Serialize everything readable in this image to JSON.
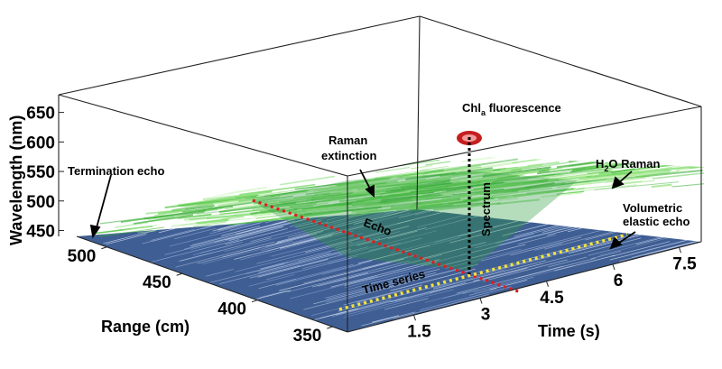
{
  "chart_data": {
    "type": "scatter",
    "title": "",
    "xlabel": "Time (s)",
    "ylabel": "Wavelength (nm)",
    "zlabel": "Range (cm)",
    "x_ticks": [
      "1.5",
      "3",
      "4.5",
      "6",
      "7.5"
    ],
    "y_ticks": [
      "450",
      "500",
      "550",
      "600",
      "650"
    ],
    "z_ticks": [
      "500",
      "450",
      "400",
      "350"
    ],
    "xlim": [
      0,
      8
    ],
    "ylim": [
      440,
      680
    ],
    "zlim": [
      340,
      520
    ],
    "series": [
      {
        "label": "H2O Raman",
        "color": "#3fbf2f",
        "wavelength_nm": [
          560,
          620
        ]
      },
      {
        "label": "Volumetric elastic echo",
        "color": "#2f4f8f",
        "wavelength_nm": [
          440,
          460
        ]
      },
      {
        "label": "Chla fluorescence",
        "color": "#c41e1e",
        "wavelength_nm": 685,
        "range_cm": 410,
        "time_s": 4.5
      }
    ],
    "annotations": [
      {
        "id": "termination",
        "text": "Termination echo"
      },
      {
        "id": "raman_ext_1",
        "text": "Raman"
      },
      {
        "id": "raman_ext_2",
        "text": "extinction"
      },
      {
        "id": "h2o_main",
        "text": "H"
      },
      {
        "id": "h2o_sub",
        "text": "2"
      },
      {
        "id": "h2o_rest",
        "text": "O Raman"
      },
      {
        "id": "chl_main",
        "text": "Chl"
      },
      {
        "id": "chl_sub",
        "text": "a"
      },
      {
        "id": "chl_rest",
        "text": " fluorescence"
      },
      {
        "id": "vol_1",
        "text": "Volumetric"
      },
      {
        "id": "vol_2",
        "text": "elastic echo"
      },
      {
        "id": "echo",
        "text": "Echo"
      },
      {
        "id": "spectrum",
        "text": "Spectrum"
      },
      {
        "id": "timeseries",
        "text": "Time series"
      }
    ]
  }
}
